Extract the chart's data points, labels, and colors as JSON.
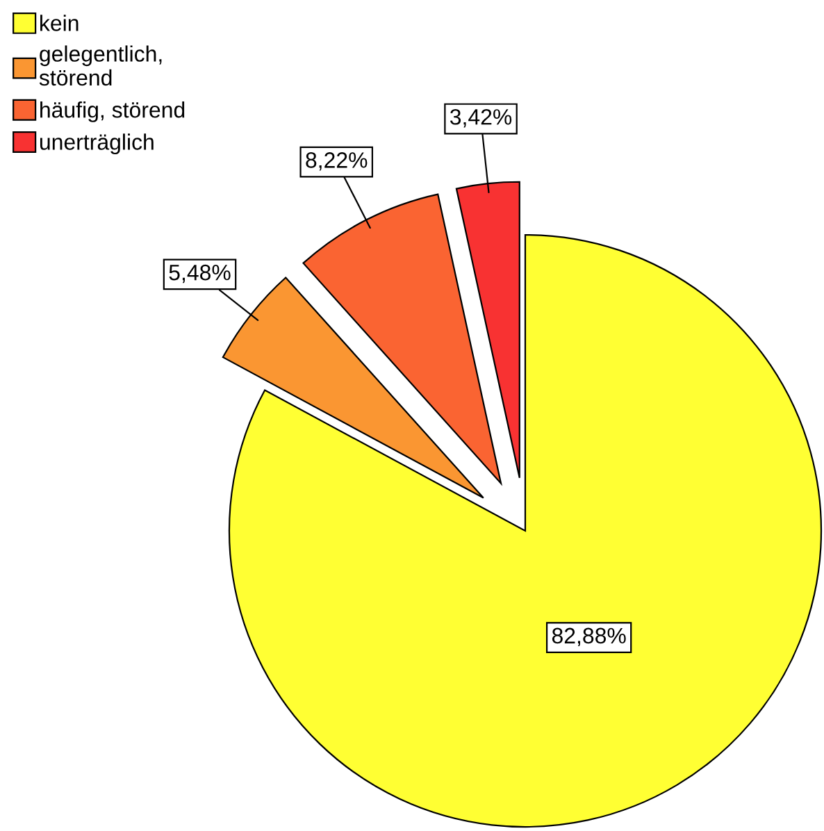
{
  "chart_data": {
    "type": "pie",
    "categories": [
      "kein",
      "gelegentlich,\nstörend",
      "häufig, störend",
      "unerträglich"
    ],
    "values": [
      82.88,
      5.48,
      8.22,
      3.42
    ],
    "value_labels": [
      "82,88%",
      "5,48%",
      "8,22%",
      "3,42%"
    ],
    "colors": [
      "#ffff33",
      "#fa9632",
      "#fa6432",
      "#f83232"
    ],
    "legend": "top left"
  }
}
